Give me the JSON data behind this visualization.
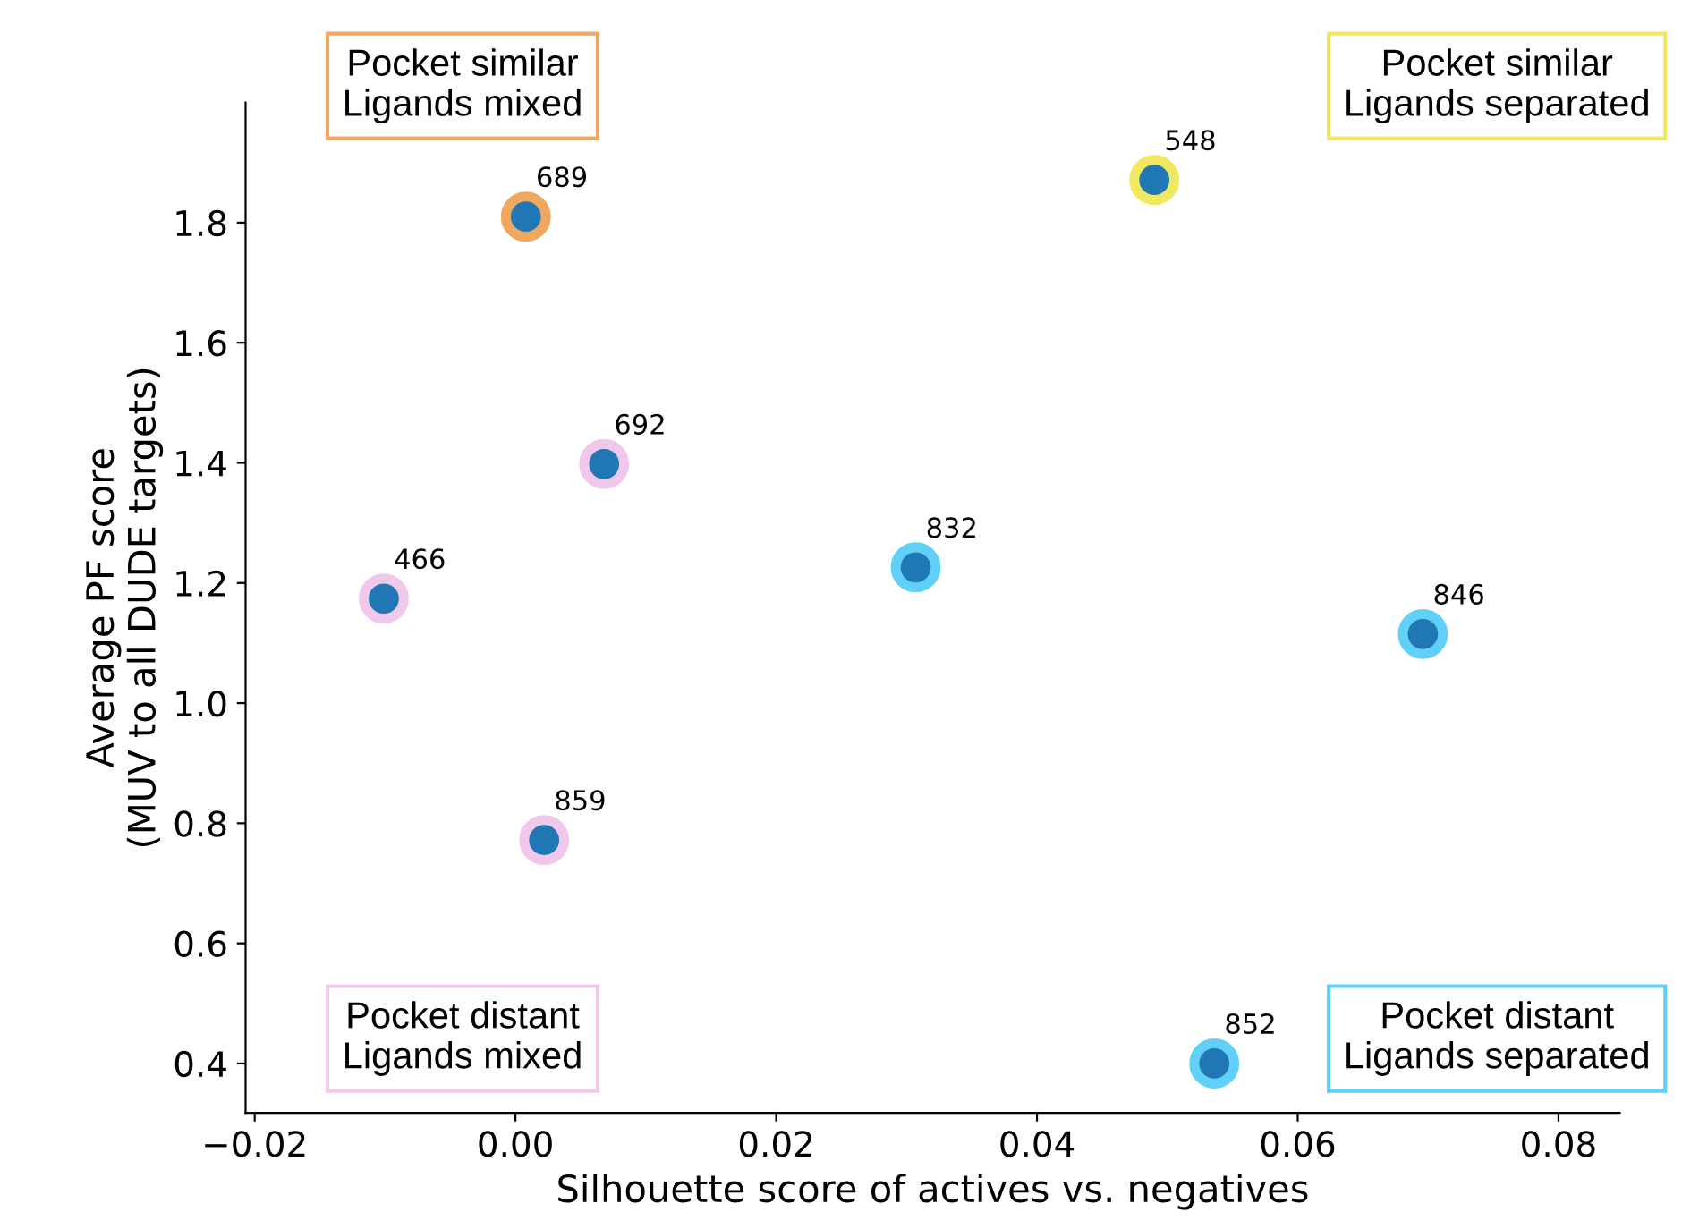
{
  "chart_data": {
    "type": "scatter",
    "xlabel": "Silhouette score of actives vs. negatives",
    "ylabel": "Average PF score\n(MUV to all DUDE targets)",
    "xlim": [
      -0.0207,
      0.0847
    ],
    "ylim": [
      0.318,
      2.0
    ],
    "xticks": [
      {
        "value": -0.02,
        "label": "−0.02"
      },
      {
        "value": 0.0,
        "label": "0.00"
      },
      {
        "value": 0.02,
        "label": "0.02"
      },
      {
        "value": 0.04,
        "label": "0.04"
      },
      {
        "value": 0.06,
        "label": "0.06"
      },
      {
        "value": 0.08,
        "label": "0.08"
      }
    ],
    "yticks": [
      0.4,
      0.6,
      0.8,
      {
        "value": 1,
        "label": "1.0"
      },
      1.2,
      1.4,
      1.6,
      1.8
    ],
    "grid": false,
    "marker": "circle",
    "x": [
      0.0008,
      0.0068,
      -0.0101,
      0.0022,
      0.0307,
      0.049,
      0.0696,
      0.0536
    ],
    "series": [
      {
        "color": "#1f77b4",
        "values": [
          1.81,
          1.398,
          1.174,
          0.772,
          1.226,
          1.871,
          1.115,
          0.4
        ],
        "colors": [
          "#f0a860",
          "#f0c8ec",
          "#f0c8ec",
          "#f0c8ec",
          "#60d0f8",
          "#f0e860",
          "#60d0f8",
          "#60d0f8"
        ]
      }
    ],
    "annotations": [
      {
        "text": "689",
        "x": 0.0008,
        "y": 1.81
      },
      {
        "text": "692",
        "x": 0.0068,
        "y": 1.398
      },
      {
        "text": "466",
        "x": -0.0101,
        "y": 1.174
      },
      {
        "text": "859",
        "x": 0.0022,
        "y": 0.772
      },
      {
        "text": "832",
        "x": 0.0307,
        "y": 1.226
      },
      {
        "text": "548",
        "x": 0.049,
        "y": 1.871
      },
      {
        "text": "846",
        "x": 0.0696,
        "y": 1.115
      },
      {
        "text": "852",
        "x": 0.0536,
        "y": 0.4
      },
      "Pocket similar\nLigands mixed",
      "Pocket similar\nLigands separated",
      "Pocket distant\nLigands mixed",
      "Pocket distant\nLigands separated"
    ]
  }
}
